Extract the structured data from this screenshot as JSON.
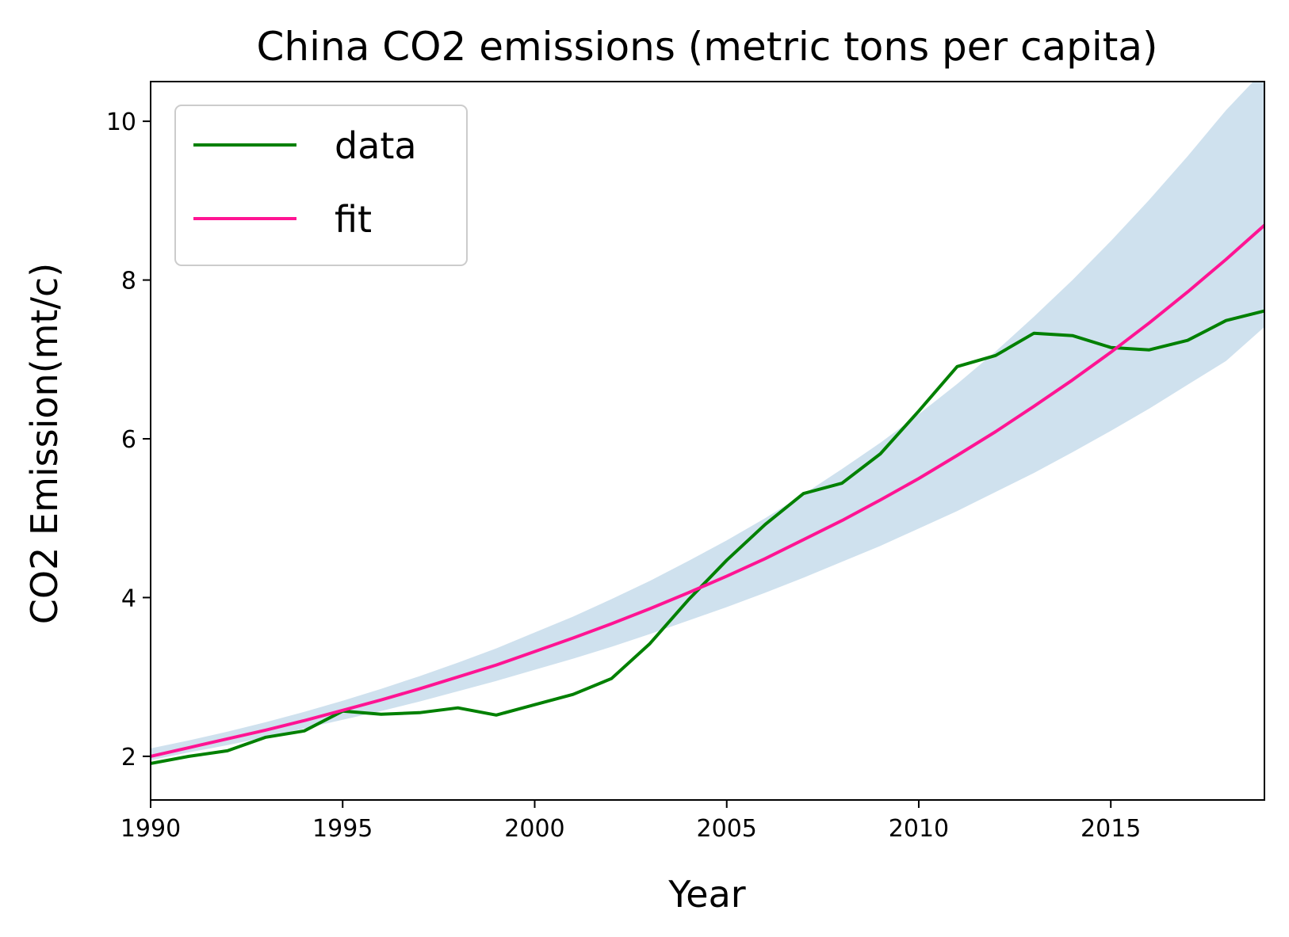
{
  "chart_data": {
    "type": "line",
    "title": "China CO2 emissions (metric tons per capita)",
    "xlabel": "Year",
    "ylabel": "CO2 Emission(mt/c)",
    "xlim": [
      1990,
      2019
    ],
    "ylim": [
      1.45,
      10.5
    ],
    "xticks": [
      1990,
      1995,
      2000,
      2005,
      2010,
      2015
    ],
    "yticks": [
      2,
      4,
      6,
      8,
      10
    ],
    "grid": false,
    "legend": "top-left",
    "series": [
      {
        "name": "data",
        "color": "#008000",
        "x": [
          1990,
          1991,
          1992,
          1993,
          1994,
          1995,
          1996,
          1997,
          1998,
          1999,
          2000,
          2001,
          2002,
          2003,
          2004,
          2005,
          2006,
          2007,
          2008,
          2009,
          2010,
          2011,
          2012,
          2013,
          2014,
          2015,
          2016,
          2017,
          2018,
          2019
        ],
        "y": [
          1.91,
          2.0,
          2.07,
          2.24,
          2.32,
          2.57,
          2.53,
          2.55,
          2.61,
          2.52,
          2.65,
          2.78,
          2.98,
          3.42,
          3.97,
          4.47,
          4.92,
          5.31,
          5.44,
          5.81,
          6.35,
          6.91,
          7.05,
          7.33,
          7.3,
          7.15,
          7.12,
          7.24,
          7.49,
          7.61
        ]
      },
      {
        "name": "fit",
        "color": "#ff1493",
        "x": [
          1990,
          1991,
          1992,
          1993,
          1994,
          1995,
          1996,
          1997,
          1998,
          1999,
          2000,
          2001,
          2002,
          2003,
          2004,
          2005,
          2006,
          2007,
          2008,
          2009,
          2010,
          2011,
          2012,
          2013,
          2014,
          2015,
          2016,
          2017,
          2018,
          2019
        ],
        "y": [
          2.0,
          2.11,
          2.22,
          2.33,
          2.45,
          2.58,
          2.71,
          2.85,
          3.0,
          3.15,
          3.32,
          3.49,
          3.67,
          3.86,
          4.06,
          4.27,
          4.49,
          4.73,
          4.97,
          5.23,
          5.5,
          5.79,
          6.09,
          6.41,
          6.74,
          7.09,
          7.46,
          7.85,
          8.26,
          8.69
        ]
      }
    ],
    "confidence_band": {
      "color": "#cfe1ee",
      "x": [
        1990,
        1991,
        1992,
        1993,
        1994,
        1995,
        1996,
        1997,
        1998,
        1999,
        2000,
        2001,
        2002,
        2003,
        2004,
        2005,
        2006,
        2007,
        2008,
        2009,
        2010,
        2011,
        2012,
        2013,
        2014,
        2015,
        2016,
        2017,
        2018,
        2019
      ],
      "lower": [
        1.95,
        2.05,
        2.14,
        2.24,
        2.35,
        2.46,
        2.57,
        2.69,
        2.82,
        2.95,
        3.09,
        3.23,
        3.38,
        3.54,
        3.71,
        3.88,
        4.06,
        4.25,
        4.45,
        4.65,
        4.87,
        5.09,
        5.33,
        5.57,
        5.83,
        6.1,
        6.38,
        6.68,
        6.98,
        7.41
      ],
      "upper": [
        2.1,
        2.2,
        2.31,
        2.43,
        2.56,
        2.7,
        2.85,
        3.01,
        3.18,
        3.36,
        3.56,
        3.76,
        3.98,
        4.21,
        4.46,
        4.72,
        5.0,
        5.3,
        5.62,
        5.95,
        6.31,
        6.69,
        7.1,
        7.54,
        8.0,
        8.49,
        9.01,
        9.56,
        10.14,
        10.65
      ]
    }
  }
}
